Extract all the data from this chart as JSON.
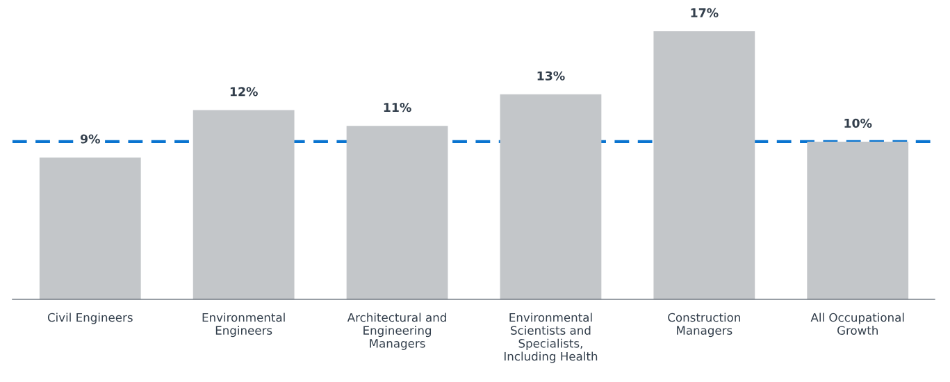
{
  "chart_data": {
    "type": "bar",
    "categories": [
      "Civil Engineers",
      "Environmental\nEngineers",
      "Architectural and\nEngineering\nManagers",
      "Environmental\nScientists and\nSpecialists,\nIncluding Health",
      "Construction\nManagers",
      "All Occupational\nGrowth"
    ],
    "values": [
      9,
      12,
      11,
      13,
      17,
      10
    ],
    "value_labels": [
      "9%",
      "12%",
      "11%",
      "13%",
      "17%",
      "10%"
    ],
    "color": "#c3c6c9",
    "tick_labels": "x",
    "grid": false,
    "legend": false,
    "ref_lines": [
      {
        "axis": "y",
        "value": 10,
        "color": "#0a74d0",
        "line_style": "dashed"
      }
    ]
  }
}
